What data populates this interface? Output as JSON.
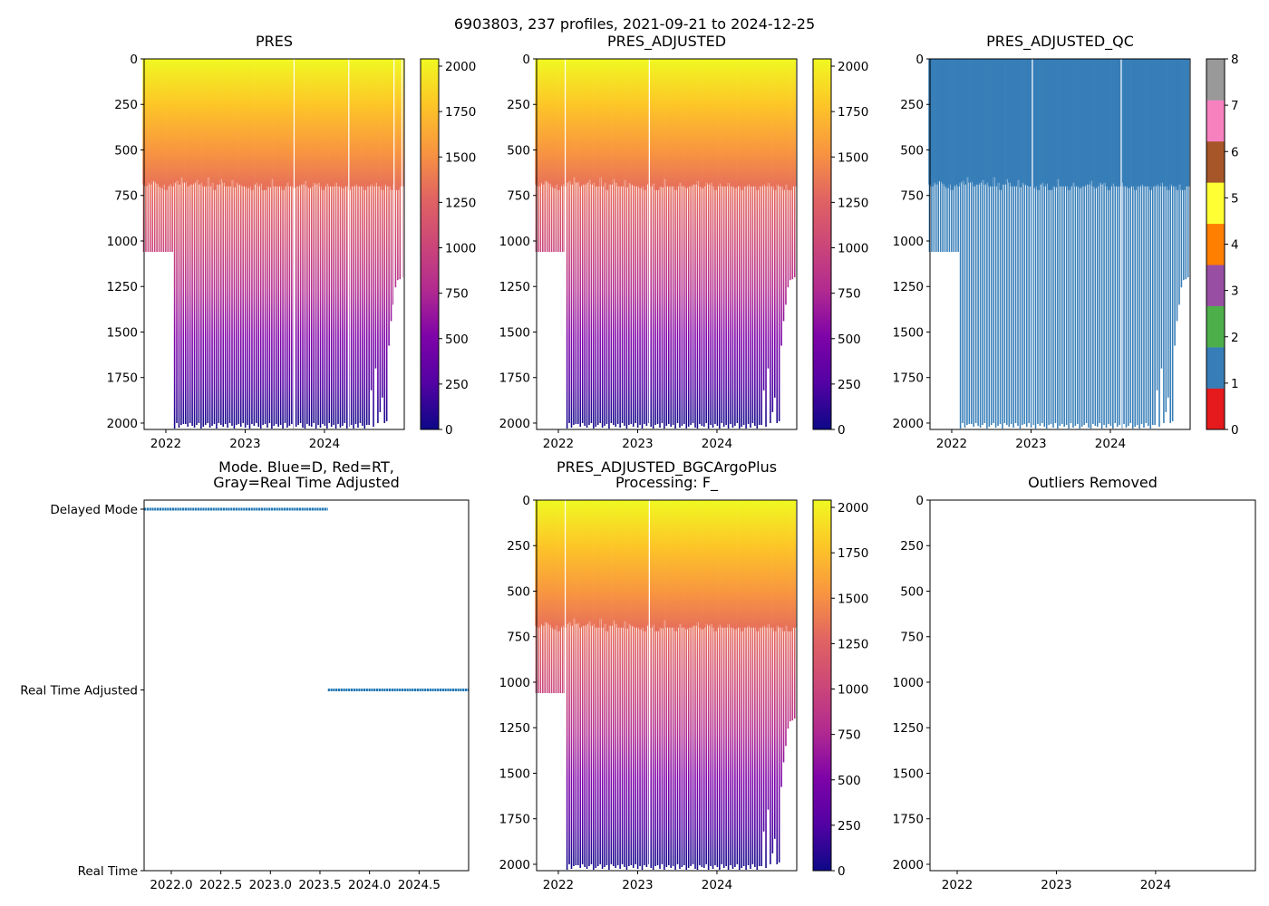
{
  "chart_data": {
    "type": "heatmap",
    "suptitle": "6903803, 237 profiles, 2021-09-21 to 2024-12-25",
    "profiles": {
      "time_start": 2021.72,
      "time_end": 2024.98,
      "shallow_max_pres": [
        690,
        700,
        680,
        690,
        670,
        675,
        685,
        700,
        710,
        690,
        720,
        700,
        690,
        700,
        680,
        670,
        690,
        650,
        680,
        675,
        700,
        690,
        690,
        680,
        665,
        690,
        680,
        700,
        700,
        650,
        700,
        680,
        720,
        690,
        690,
        660,
        680,
        700,
        700,
        700,
        665,
        705,
        680,
        690,
        695,
        700,
        700,
        710,
        700,
        720,
        690,
        680,
        700,
        685,
        720,
        720,
        700,
        705,
        660,
        700,
        700,
        700,
        700,
        720,
        700,
        680,
        700,
        700,
        710,
        700,
        700,
        690,
        690,
        670,
        700,
        710,
        700,
        680,
        690,
        680,
        700,
        720,
        700,
        685,
        700,
        700,
        700,
        680,
        700,
        700,
        710,
        700,
        700,
        720,
        700,
        700,
        690,
        700,
        700,
        700,
        720,
        700,
        700,
        690,
        700,
        680,
        700,
        700,
        720,
        690,
        700,
        700,
        720,
        690,
        720,
        720,
        700,
        700
      ],
      "deep_max_pres": [
        1060,
        1060,
        1060,
        1060,
        1060,
        1060,
        1060,
        1060,
        1060,
        1060,
        1060,
        1060,
        1060,
        1060,
        2030,
        2000,
        2025,
        2010,
        2005,
        2005,
        2020,
        2000,
        2015,
        2025,
        2010,
        2000,
        2030,
        2020,
        2010,
        2000,
        2025,
        2015,
        2005,
        2030,
        2000,
        2010,
        2020,
        2005,
        2025,
        2000,
        2015,
        2030,
        2010,
        2005,
        2020,
        2000,
        2025,
        2010,
        2030,
        2005,
        2015,
        2000,
        2020,
        2030,
        2010,
        2005,
        2025,
        2000,
        2030,
        2015,
        2005,
        2020,
        2010,
        2030,
        2000,
        2025,
        2015,
        2005,
        2030,
        2020,
        2010,
        2000,
        2025,
        2030,
        2005,
        2015,
        2020,
        2000,
        2030,
        2010,
        2025,
        2005,
        2015,
        2030,
        2000,
        2020,
        2010,
        2030,
        2005,
        2025,
        2015,
        2000,
        2030,
        2020,
        2010,
        2030,
        2005,
        2025,
        2000,
        2015,
        2030,
        2010,
        2010,
        1820,
        2020,
        1700,
        2000,
        1940,
        1860,
        2000,
        1990,
        1575,
        1440,
        1350,
        1255,
        1215,
        1210,
        1200
      ],
      "qc_value": 1
    },
    "panels": [
      {
        "title": "PRES",
        "xlim": [
          2021.726,
          2025.006
        ],
        "ylim": [
          2035,
          0
        ],
        "xticks": [
          "2022",
          "2023",
          "2024"
        ],
        "xtick_values": [
          2022,
          2023,
          2024
        ],
        "yticks": [
          "0",
          "250",
          "500",
          "750",
          "1000",
          "1250",
          "1500",
          "1750",
          "2000"
        ],
        "ytick_values": [
          0,
          250,
          500,
          750,
          1000,
          1250,
          1500,
          1750,
          2000
        ],
        "colorbar": {
          "cmap": "plasma_r",
          "range": [
            0,
            2040
          ],
          "ticks": [
            "0",
            "250",
            "500",
            "750",
            "1000",
            "1250",
            "1500",
            "1750",
            "2000"
          ],
          "tick_values": [
            0,
            250,
            500,
            750,
            1000,
            1250,
            1500,
            1750,
            2000
          ]
        },
        "gaps": [
          2023.61,
          2024.3,
          2024.87,
          2024.97
        ]
      },
      {
        "title": "PRES_ADJUSTED",
        "xlim": [
          2021.726,
          2025.006
        ],
        "ylim": [
          2035,
          0
        ],
        "xticks": [
          "2022",
          "2023",
          "2024"
        ],
        "xtick_values": [
          2022,
          2023,
          2024
        ],
        "yticks": [
          "0",
          "250",
          "500",
          "750",
          "1000",
          "1250",
          "1500",
          "1750",
          "2000"
        ],
        "ytick_values": [
          0,
          250,
          500,
          750,
          1000,
          1250,
          1500,
          1750,
          2000
        ],
        "colorbar": {
          "cmap": "plasma_r",
          "range": [
            0,
            2040
          ],
          "ticks": [
            "0",
            "250",
            "500",
            "750",
            "1000",
            "1250",
            "1500",
            "1750",
            "2000"
          ],
          "tick_values": [
            0,
            250,
            500,
            750,
            1000,
            1250,
            1500,
            1750,
            2000
          ]
        },
        "gaps": [
          2022.08,
          2023.14
        ]
      },
      {
        "title": "PRES_ADJUSTED_QC",
        "xlim": [
          2021.726,
          2025.006
        ],
        "ylim": [
          2035,
          0
        ],
        "xticks": [
          "2022",
          "2023",
          "2024"
        ],
        "xtick_values": [
          2022,
          2023,
          2024
        ],
        "yticks": [
          "0",
          "250",
          "500",
          "750",
          "1000",
          "1250",
          "1500",
          "1750",
          "2000"
        ],
        "ytick_values": [
          0,
          250,
          500,
          750,
          1000,
          1250,
          1500,
          1750,
          2000
        ],
        "colorbar": {
          "cmap": "Set1",
          "range": [
            0,
            8
          ],
          "ticks": [
            "0",
            "1",
            "2",
            "3",
            "4",
            "5",
            "6",
            "7",
            "8"
          ],
          "tick_values": [
            0,
            1,
            2,
            3,
            4,
            5,
            6,
            7,
            8
          ],
          "colors": [
            "#e41a1c",
            "#377eb8",
            "#4daf4a",
            "#984ea3",
            "#ff7f00",
            "#ffff33",
            "#a65628",
            "#f781bf",
            "#999999"
          ]
        },
        "gaps": [
          2023.01,
          2024.13
        ]
      },
      {
        "title": "Mode. Blue=D, Red=RT,",
        "title2": "Gray=Real Time Adjusted",
        "type": "line",
        "xlim": [
          2021.726,
          2025.0
        ],
        "ylim": [
          0,
          2.05
        ],
        "xticks": [
          "2022.0",
          "2022.5",
          "2023.0",
          "2023.5",
          "2024.0",
          "2024.5"
        ],
        "xtick_values": [
          2022,
          2022.5,
          2023,
          2023.5,
          2024,
          2024.5
        ],
        "yticks": [
          "Real Time",
          "Real Time Adjusted",
          "Delayed Mode"
        ],
        "ytick_values": [
          0,
          1,
          2
        ],
        "series": [
          {
            "name": "Delayed Mode",
            "x": [
              2021.726,
              2023.58
            ],
            "y": 2
          },
          {
            "name": "Real Time Adjusted",
            "x": [
              2023.58,
              2025.0
            ],
            "y": 1
          }
        ],
        "color": "#1f77b4"
      },
      {
        "title": "PRES_ADJUSTED_BGCArgoPlus",
        "title2": "Processing: F_",
        "xlim": [
          2021.726,
          2025.006
        ],
        "ylim": [
          2035,
          0
        ],
        "xticks": [
          "2022",
          "2023",
          "2024"
        ],
        "xtick_values": [
          2022,
          2023,
          2024
        ],
        "yticks": [
          "0",
          "250",
          "500",
          "750",
          "1000",
          "1250",
          "1500",
          "1750",
          "2000"
        ],
        "ytick_values": [
          0,
          250,
          500,
          750,
          1000,
          1250,
          1500,
          1750,
          2000
        ],
        "colorbar": {
          "cmap": "plasma_r",
          "range": [
            0,
            2040
          ],
          "ticks": [
            "0",
            "250",
            "500",
            "750",
            "1000",
            "1250",
            "1500",
            "1750",
            "2000"
          ],
          "tick_values": [
            0,
            250,
            500,
            750,
            1000,
            1250,
            1500,
            1750,
            2000
          ]
        },
        "gaps": [
          2022.08,
          2023.14
        ]
      },
      {
        "title": "Outliers Removed",
        "type": "empty",
        "xlim": [
          2021.726,
          2025.006
        ],
        "ylim": [
          2035,
          0
        ],
        "xticks": [
          "2022",
          "2023",
          "2024"
        ],
        "xtick_values": [
          2022,
          2023,
          2024
        ],
        "yticks": [
          "0",
          "250",
          "500",
          "750",
          "1000",
          "1250",
          "1500",
          "1750",
          "2000"
        ],
        "ytick_values": [
          0,
          250,
          500,
          750,
          1000,
          1250,
          1500,
          1750,
          2000
        ]
      }
    ]
  }
}
